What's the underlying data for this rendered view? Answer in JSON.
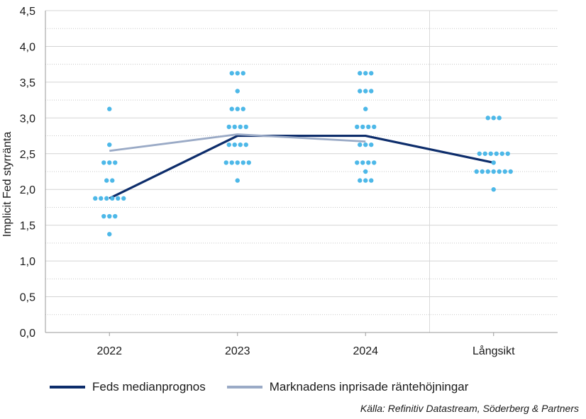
{
  "chart_data": {
    "type": "scatter",
    "categories": [
      "2022",
      "2023",
      "2024",
      "Långsikt"
    ],
    "ylabel": "Implicit Fed styrränta",
    "xlabel": "",
    "ylim": [
      0,
      4.5
    ],
    "y_ticks": [
      "0,0",
      "0,5",
      "1,0",
      "1,5",
      "2,0",
      "2,5",
      "3,0",
      "3,5",
      "4,0",
      "4,5"
    ],
    "grid": true,
    "legend_position": "bottom-left",
    "dots_color": "#4db8e8",
    "dots": [
      {
        "category": "2022",
        "groups": [
          [
            3.125,
            1
          ],
          [
            2.625,
            1
          ],
          [
            2.375,
            3
          ],
          [
            2.125,
            2
          ],
          [
            1.875,
            6
          ],
          [
            1.625,
            3
          ],
          [
            1.375,
            1
          ]
        ]
      },
      {
        "category": "2023",
        "groups": [
          [
            3.625,
            3
          ],
          [
            3.375,
            1
          ],
          [
            3.125,
            3
          ],
          [
            2.875,
            4
          ],
          [
            2.625,
            4
          ],
          [
            2.375,
            5
          ],
          [
            2.125,
            1
          ]
        ]
      },
      {
        "category": "2024",
        "groups": [
          [
            3.625,
            3
          ],
          [
            3.375,
            3
          ],
          [
            3.125,
            1
          ],
          [
            2.875,
            4
          ],
          [
            2.625,
            3
          ],
          [
            2.375,
            4
          ],
          [
            2.25,
            1
          ],
          [
            2.125,
            3
          ]
        ]
      },
      {
        "category": "Långsikt",
        "groups": [
          [
            3.0,
            3
          ],
          [
            2.5,
            6
          ],
          [
            2.375,
            1
          ],
          [
            2.25,
            7
          ],
          [
            2.0,
            1
          ]
        ]
      }
    ],
    "series": [
      {
        "name": "Feds medianprognos",
        "color": "#0d2d6b",
        "categories": [
          "2022",
          "2023",
          "2024",
          "Långsikt"
        ],
        "values": [
          1.875,
          2.75,
          2.75,
          2.375
        ]
      },
      {
        "name": "Marknadens inprisade räntehöjningar",
        "color": "#9aaac6",
        "categories": [
          "2022",
          "2023",
          "2024"
        ],
        "values": [
          2.54,
          2.77,
          2.67
        ]
      }
    ]
  },
  "legend": {
    "item1": "Feds medianprognos",
    "item2": "Marknadens inprisade räntehöjningar"
  },
  "source": "Källa: Refinitiv Datastream, Söderberg & Partners"
}
